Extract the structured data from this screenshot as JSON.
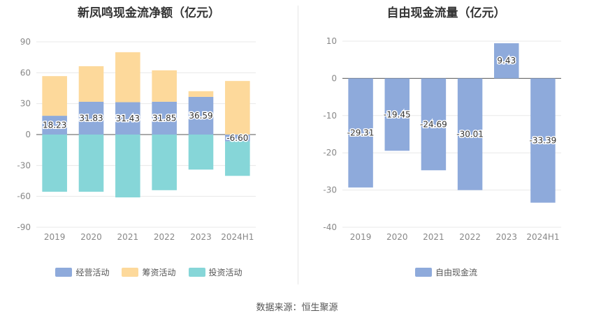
{
  "source": "数据来源：恒生聚源",
  "chart_data": [
    {
      "type": "bar",
      "stacked": true,
      "title": "新凤鸣现金流净额（亿元）",
      "categories": [
        "2019",
        "2020",
        "2021",
        "2022",
        "2023",
        "2024H1"
      ],
      "ylim": [
        -90,
        90
      ],
      "yticks": [
        90,
        60,
        30,
        0,
        -30,
        -60,
        -90
      ],
      "grid": true,
      "legend_position": "bottom",
      "series": [
        {
          "name": "经营活动",
          "color": "#8eaadb",
          "values": [
            18.23,
            31.83,
            31.43,
            31.85,
            36.59,
            -6.6
          ],
          "labeled": true
        },
        {
          "name": "筹资活动",
          "color": "#fdd99b",
          "values": [
            38.5,
            34.5,
            48.5,
            30.5,
            5.5,
            52.0
          ],
          "labeled": false
        },
        {
          "name": "投资活动",
          "color": "#86d6d8",
          "values": [
            -55.5,
            -55.5,
            -61.0,
            -54.0,
            -34.0,
            -33.5
          ],
          "labeled": false
        }
      ],
      "data_labels": [
        "18.23",
        "31.83",
        "31.43",
        "31.85",
        "36.59",
        "-6.60"
      ]
    },
    {
      "type": "bar",
      "title": "自由现金流量（亿元）",
      "categories": [
        "2019",
        "2020",
        "2021",
        "2022",
        "2023",
        "2024H1"
      ],
      "ylim": [
        -40,
        10
      ],
      "yticks": [
        10,
        0,
        -10,
        -20,
        -30,
        -40
      ],
      "grid": true,
      "legend_position": "bottom",
      "series": [
        {
          "name": "自由现金流",
          "color": "#8eaadb",
          "values": [
            -29.31,
            -19.45,
            -24.69,
            -30.01,
            9.43,
            -33.39
          ],
          "labeled": true
        }
      ],
      "data_labels": [
        "-29.31",
        "-19.45",
        "-24.69",
        "-30.01",
        "9.43",
        "-33.39"
      ]
    }
  ]
}
